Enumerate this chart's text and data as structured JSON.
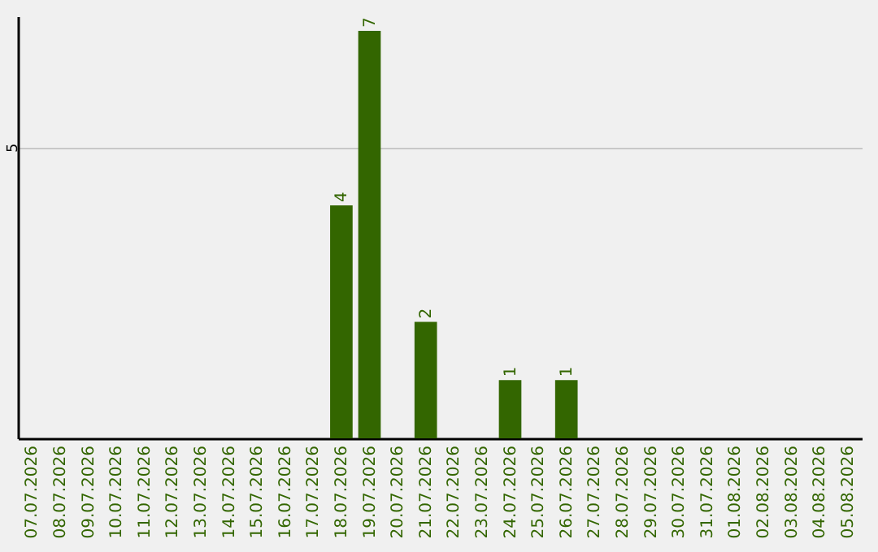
{
  "chart_data": {
    "type": "bar",
    "categories": [
      "07.07.2026",
      "08.07.2026",
      "09.07.2026",
      "10.07.2026",
      "11.07.2026",
      "12.07.2026",
      "13.07.2026",
      "14.07.2026",
      "15.07.2026",
      "16.07.2026",
      "17.07.2026",
      "18.07.2026",
      "19.07.2026",
      "20.07.2026",
      "21.07.2026",
      "22.07.2026",
      "23.07.2026",
      "24.07.2026",
      "25.07.2026",
      "26.07.2026",
      "27.07.2026",
      "28.07.2026",
      "29.07.2026",
      "30.07.2026",
      "31.07.2026",
      "01.08.2026",
      "02.08.2026",
      "03.08.2026",
      "04.08.2026",
      "05.08.2026"
    ],
    "values": [
      0,
      0,
      0,
      0,
      0,
      0,
      0,
      0,
      0,
      0,
      0,
      4,
      7,
      0,
      2,
      0,
      0,
      1,
      0,
      1,
      0,
      0,
      0,
      0,
      0,
      0,
      0,
      0,
      0,
      0
    ],
    "value_labels": [
      null,
      null,
      null,
      null,
      null,
      null,
      null,
      null,
      null,
      null,
      null,
      "4",
      "7",
      null,
      "2",
      null,
      null,
      "1",
      null,
      "1",
      null,
      null,
      null,
      null,
      null,
      null,
      null,
      null,
      null,
      null
    ],
    "color": "#336600",
    "ylim": [
      0,
      7.25
    ],
    "yticks": [
      5
    ],
    "grid": "y"
  }
}
